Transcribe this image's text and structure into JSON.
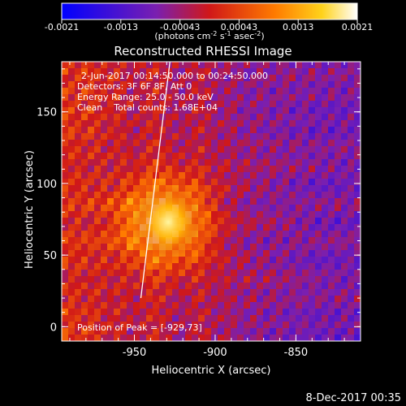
{
  "colorbar": {
    "ticks": [
      "-0.0021",
      "-0.0013",
      "-0.00043",
      "0.00043",
      "0.0013",
      "0.0021"
    ],
    "unit_main": "(photons cm",
    "unit_exp1": "-2",
    "unit_mid": " s",
    "unit_exp2": "-1",
    "unit_mid2": " asec",
    "unit_exp3": "-2",
    "unit_end": ")"
  },
  "chart_data": {
    "type": "heatmap",
    "title": "Reconstructed RHESSI Image",
    "xlabel": "Heliocentric X (arcsec)",
    "ylabel": "Heliocentric Y (arcsec)",
    "xlim": [
      -995,
      -810
    ],
    "ylim": [
      -10,
      185
    ],
    "xticks": [
      -950,
      -900,
      -850
    ],
    "xtick_labels": [
      "-950",
      "-900",
      "-850"
    ],
    "yticks": [
      0,
      50,
      100,
      150
    ],
    "ytick_labels": [
      "0",
      "50",
      "100",
      "150"
    ],
    "value_range": [
      -0.0021,
      0.0021
    ],
    "peak": {
      "x": -929,
      "y": 73
    },
    "limb_line": {
      "x0": -946,
      "y0": 20,
      "x1": -928,
      "y1": 185
    },
    "annotations": [
      "2-Jun-2017 00:14:50.000 to 00:24:50.000",
      "Detectors: 3F 6F 8F, Att 0",
      "Energy Range: 25.0 - 50.0 keV",
      "Clean    Total counts: 1.68E+04"
    ],
    "peak_label": "Position of Peak = [-929,73]"
  },
  "footer": {
    "date": "8-Dec-2017 00:35"
  }
}
